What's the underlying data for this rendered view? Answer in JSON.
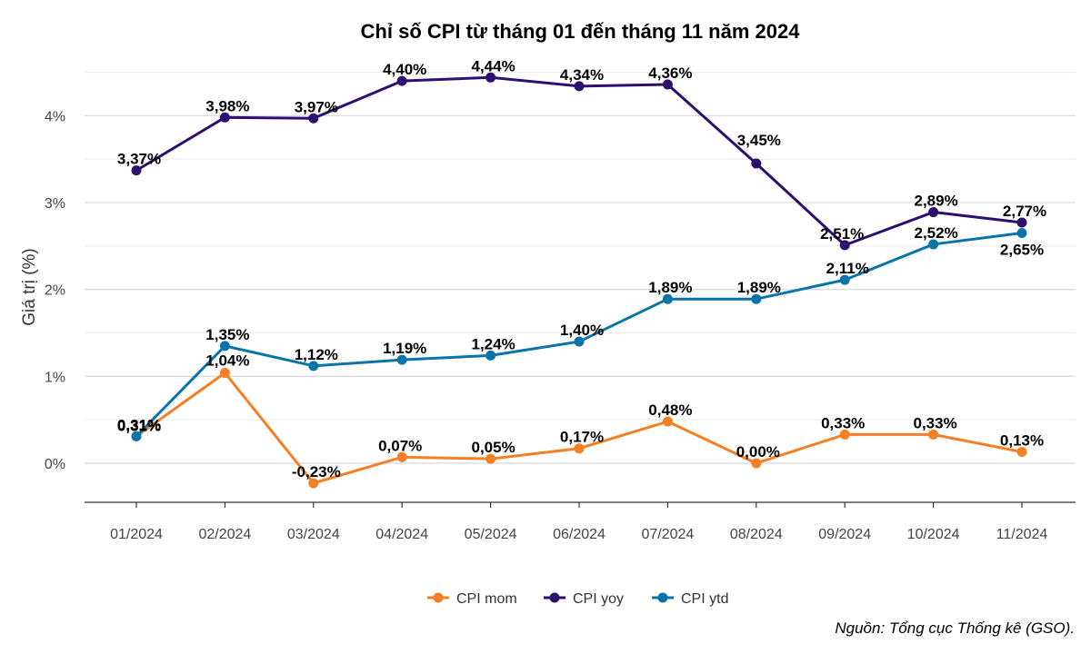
{
  "chart_data": {
    "type": "line",
    "title": "Chỉ số CPI từ tháng 01 đến tháng 11 năm 2024",
    "xlabel": "",
    "ylabel": "Giá trị (%)",
    "categories": [
      "01/2024",
      "02/2024",
      "03/2024",
      "04/2024",
      "05/2024",
      "06/2024",
      "07/2024",
      "08/2024",
      "09/2024",
      "10/2024",
      "11/2024"
    ],
    "ylim": [
      -0.45,
      4.6
    ],
    "yticks": [
      0,
      1,
      2,
      3,
      4
    ],
    "ytick_labels": [
      "0%",
      "1%",
      "2%",
      "3%",
      "4%"
    ],
    "grid": true,
    "legend_position": "bottom",
    "series": [
      {
        "name": "CPI mom",
        "color": "#F47F24",
        "values": [
          0.31,
          1.04,
          -0.23,
          0.07,
          0.05,
          0.17,
          0.48,
          0.0,
          0.33,
          0.33,
          0.13
        ],
        "labels": [
          "0,31%",
          "1,04%",
          "-0,23%",
          "0,07%",
          "0,05%",
          "0,17%",
          "0,48%",
          "0,00%",
          "0,33%",
          "0,33%",
          "0,13%"
        ]
      },
      {
        "name": "CPI yoy",
        "color": "#2D0F6E",
        "values": [
          3.37,
          3.98,
          3.97,
          4.4,
          4.44,
          4.34,
          4.36,
          3.45,
          2.51,
          2.89,
          2.77
        ],
        "labels": [
          "3,37%",
          "3,98%",
          "3,97%",
          "4,40%",
          "4,44%",
          "4,34%",
          "4,36%",
          "3,45%",
          "2,51%",
          "2,89%",
          "2,77%"
        ]
      },
      {
        "name": "CPI ytd",
        "color": "#0874AA",
        "values": [
          0.31,
          1.35,
          1.12,
          1.19,
          1.24,
          1.4,
          1.89,
          1.89,
          2.11,
          2.52,
          2.65
        ],
        "labels": [
          "0,31%",
          "1,35%",
          "1,12%",
          "1,19%",
          "1,24%",
          "1,40%",
          "1,89%",
          "1,89%",
          "2,11%",
          "2,52%",
          "2,65%"
        ]
      }
    ],
    "source": "Nguồn: Tổng cục Thống kê (GSO)."
  }
}
